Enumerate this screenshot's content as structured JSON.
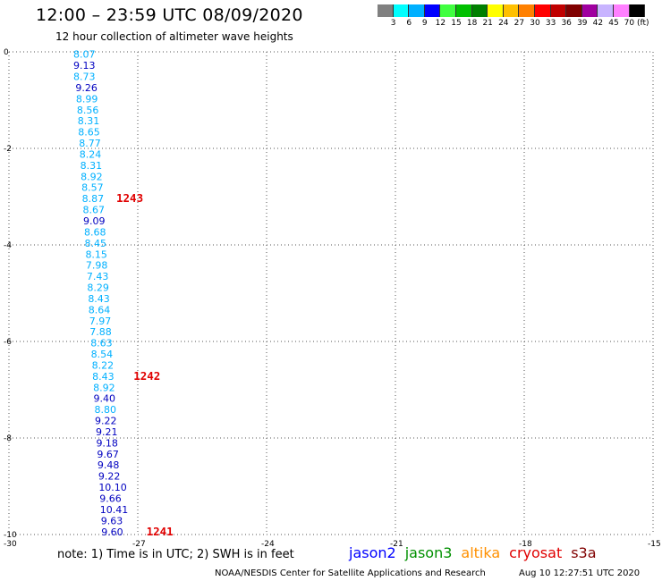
{
  "header": {
    "title": "12:00 – 23:59 UTC 08/09/2020",
    "subtitle": "12 hour collection of altimeter wave heights"
  },
  "legend": {
    "colors": [
      "#808080",
      "#00ffff",
      "#00b0ff",
      "#0000ff",
      "#40ff40",
      "#00c000",
      "#008000",
      "#ffff00",
      "#ffc000",
      "#ff8000",
      "#ff0000",
      "#c00000",
      "#800000",
      "#a000a0",
      "#c8b4ff",
      "#ff80ff",
      "#000000"
    ],
    "labels": [
      "3",
      "6",
      "9",
      "12",
      "15",
      "18",
      "21",
      "24",
      "27",
      "30",
      "33",
      "36",
      "39",
      "42",
      "45",
      "70 (ft)"
    ]
  },
  "note": "note: 1) Time is in UTC; 2) SWH is in feet",
  "satellites": [
    {
      "name": "jason2",
      "color": "#0000ff"
    },
    {
      "name": "jason3",
      "color": "#009000"
    },
    {
      "name": "altika",
      "color": "#ff9000"
    },
    {
      "name": "cryosat",
      "color": "#e00000"
    },
    {
      "name": "s3a",
      "color": "#800000"
    }
  ],
  "footer": {
    "credit": "NOAA/NESDIS Center for Satellite Applications and Research",
    "timestamp": "Aug 10 12:27:51 UTC 2020"
  },
  "chart_data": {
    "type": "scatter",
    "xlim": [
      -30,
      -15
    ],
    "ylim": [
      -10,
      0
    ],
    "xticks": [
      "-30",
      "-27",
      "-24",
      "-21",
      "-18",
      "-15"
    ],
    "yticks": [
      "0",
      "-2",
      "-4",
      "-6",
      "-8",
      "-10"
    ],
    "grid": true,
    "points": [
      {
        "x": -28.5,
        "y": -0.05,
        "label": "8.07",
        "color": "#00b0ff"
      },
      {
        "x": -28.5,
        "y": -0.28,
        "label": "9.13",
        "color": "#0000c0"
      },
      {
        "x": -28.5,
        "y": -0.51,
        "label": "8.73",
        "color": "#00b0ff"
      },
      {
        "x": -28.45,
        "y": -0.74,
        "label": "9.26",
        "color": "#0000c0"
      },
      {
        "x": -28.44,
        "y": -0.97,
        "label": "8.99",
        "color": "#00b0ff"
      },
      {
        "x": -28.42,
        "y": -1.2,
        "label": "8.56",
        "color": "#00b0ff"
      },
      {
        "x": -28.4,
        "y": -1.43,
        "label": "8.31",
        "color": "#00b0ff"
      },
      {
        "x": -28.39,
        "y": -1.66,
        "label": "8.65",
        "color": "#00b0ff"
      },
      {
        "x": -28.37,
        "y": -1.89,
        "label": "8.77",
        "color": "#00b0ff"
      },
      {
        "x": -28.36,
        "y": -2.12,
        "label": "8.24",
        "color": "#00b0ff"
      },
      {
        "x": -28.34,
        "y": -2.35,
        "label": "8.31",
        "color": "#00b0ff"
      },
      {
        "x": -28.33,
        "y": -2.58,
        "label": "8.92",
        "color": "#00b0ff"
      },
      {
        "x": -28.31,
        "y": -2.81,
        "label": "8.57",
        "color": "#00b0ff"
      },
      {
        "x": -28.3,
        "y": -3.04,
        "label": "8.87",
        "color": "#00b0ff"
      },
      {
        "x": -28.28,
        "y": -3.27,
        "label": "8.67",
        "color": "#00b0ff"
      },
      {
        "x": -28.27,
        "y": -3.5,
        "label": "9.09",
        "color": "#0000c0"
      },
      {
        "x": -28.25,
        "y": -3.73,
        "label": "8.68",
        "color": "#00b0ff"
      },
      {
        "x": -28.24,
        "y": -3.96,
        "label": "8.45",
        "color": "#00b0ff"
      },
      {
        "x": -28.22,
        "y": -4.19,
        "label": "8.15",
        "color": "#00b0ff"
      },
      {
        "x": -28.21,
        "y": -4.42,
        "label": "7.98",
        "color": "#00b0ff"
      },
      {
        "x": -28.19,
        "y": -4.65,
        "label": "7.43",
        "color": "#00b0ff"
      },
      {
        "x": -28.18,
        "y": -4.88,
        "label": "8.29",
        "color": "#00b0ff"
      },
      {
        "x": -28.16,
        "y": -5.11,
        "label": "8.43",
        "color": "#00b0ff"
      },
      {
        "x": -28.15,
        "y": -5.34,
        "label": "8.64",
        "color": "#00b0ff"
      },
      {
        "x": -28.13,
        "y": -5.57,
        "label": "7.97",
        "color": "#00b0ff"
      },
      {
        "x": -28.12,
        "y": -5.8,
        "label": "7.88",
        "color": "#00b0ff"
      },
      {
        "x": -28.1,
        "y": -6.03,
        "label": "8.63",
        "color": "#00b0ff"
      },
      {
        "x": -28.09,
        "y": -6.26,
        "label": "8.54",
        "color": "#00b0ff"
      },
      {
        "x": -28.07,
        "y": -6.49,
        "label": "8.22",
        "color": "#00b0ff"
      },
      {
        "x": -28.06,
        "y": -6.72,
        "label": "8.43",
        "color": "#00b0ff"
      },
      {
        "x": -28.04,
        "y": -6.95,
        "label": "8.92",
        "color": "#00b0ff"
      },
      {
        "x": -28.03,
        "y": -7.18,
        "label": "9.40",
        "color": "#0000c0"
      },
      {
        "x": -28.01,
        "y": -7.41,
        "label": "8.80",
        "color": "#00b0ff"
      },
      {
        "x": -28.0,
        "y": -7.64,
        "label": "9.22",
        "color": "#0000c0"
      },
      {
        "x": -27.98,
        "y": -7.87,
        "label": "9.21",
        "color": "#0000c0"
      },
      {
        "x": -27.97,
        "y": -8.1,
        "label": "9.18",
        "color": "#0000c0"
      },
      {
        "x": -27.95,
        "y": -8.33,
        "label": "9.67",
        "color": "#0000c0"
      },
      {
        "x": -27.94,
        "y": -8.56,
        "label": "9.48",
        "color": "#0000c0"
      },
      {
        "x": -27.92,
        "y": -8.79,
        "label": "9.22",
        "color": "#0000c0"
      },
      {
        "x": -27.91,
        "y": -9.02,
        "label": "10.10",
        "color": "#0000c0"
      },
      {
        "x": -27.89,
        "y": -9.25,
        "label": "9.66",
        "color": "#0000c0"
      },
      {
        "x": -27.88,
        "y": -9.48,
        "label": "10.41",
        "color": "#0000c0"
      },
      {
        "x": -27.86,
        "y": -9.71,
        "label": "9.63",
        "color": "#0000c0"
      },
      {
        "x": -27.85,
        "y": -9.94,
        "label": "9.60",
        "color": "#0000c0"
      }
    ],
    "annotations": [
      {
        "x": -27.5,
        "y": -3.04,
        "label": "1243",
        "color": "#e00000"
      },
      {
        "x": -27.1,
        "y": -6.72,
        "label": "1242",
        "color": "#e00000"
      },
      {
        "x": -26.8,
        "y": -9.94,
        "label": "1241",
        "color": "#e00000"
      }
    ]
  }
}
